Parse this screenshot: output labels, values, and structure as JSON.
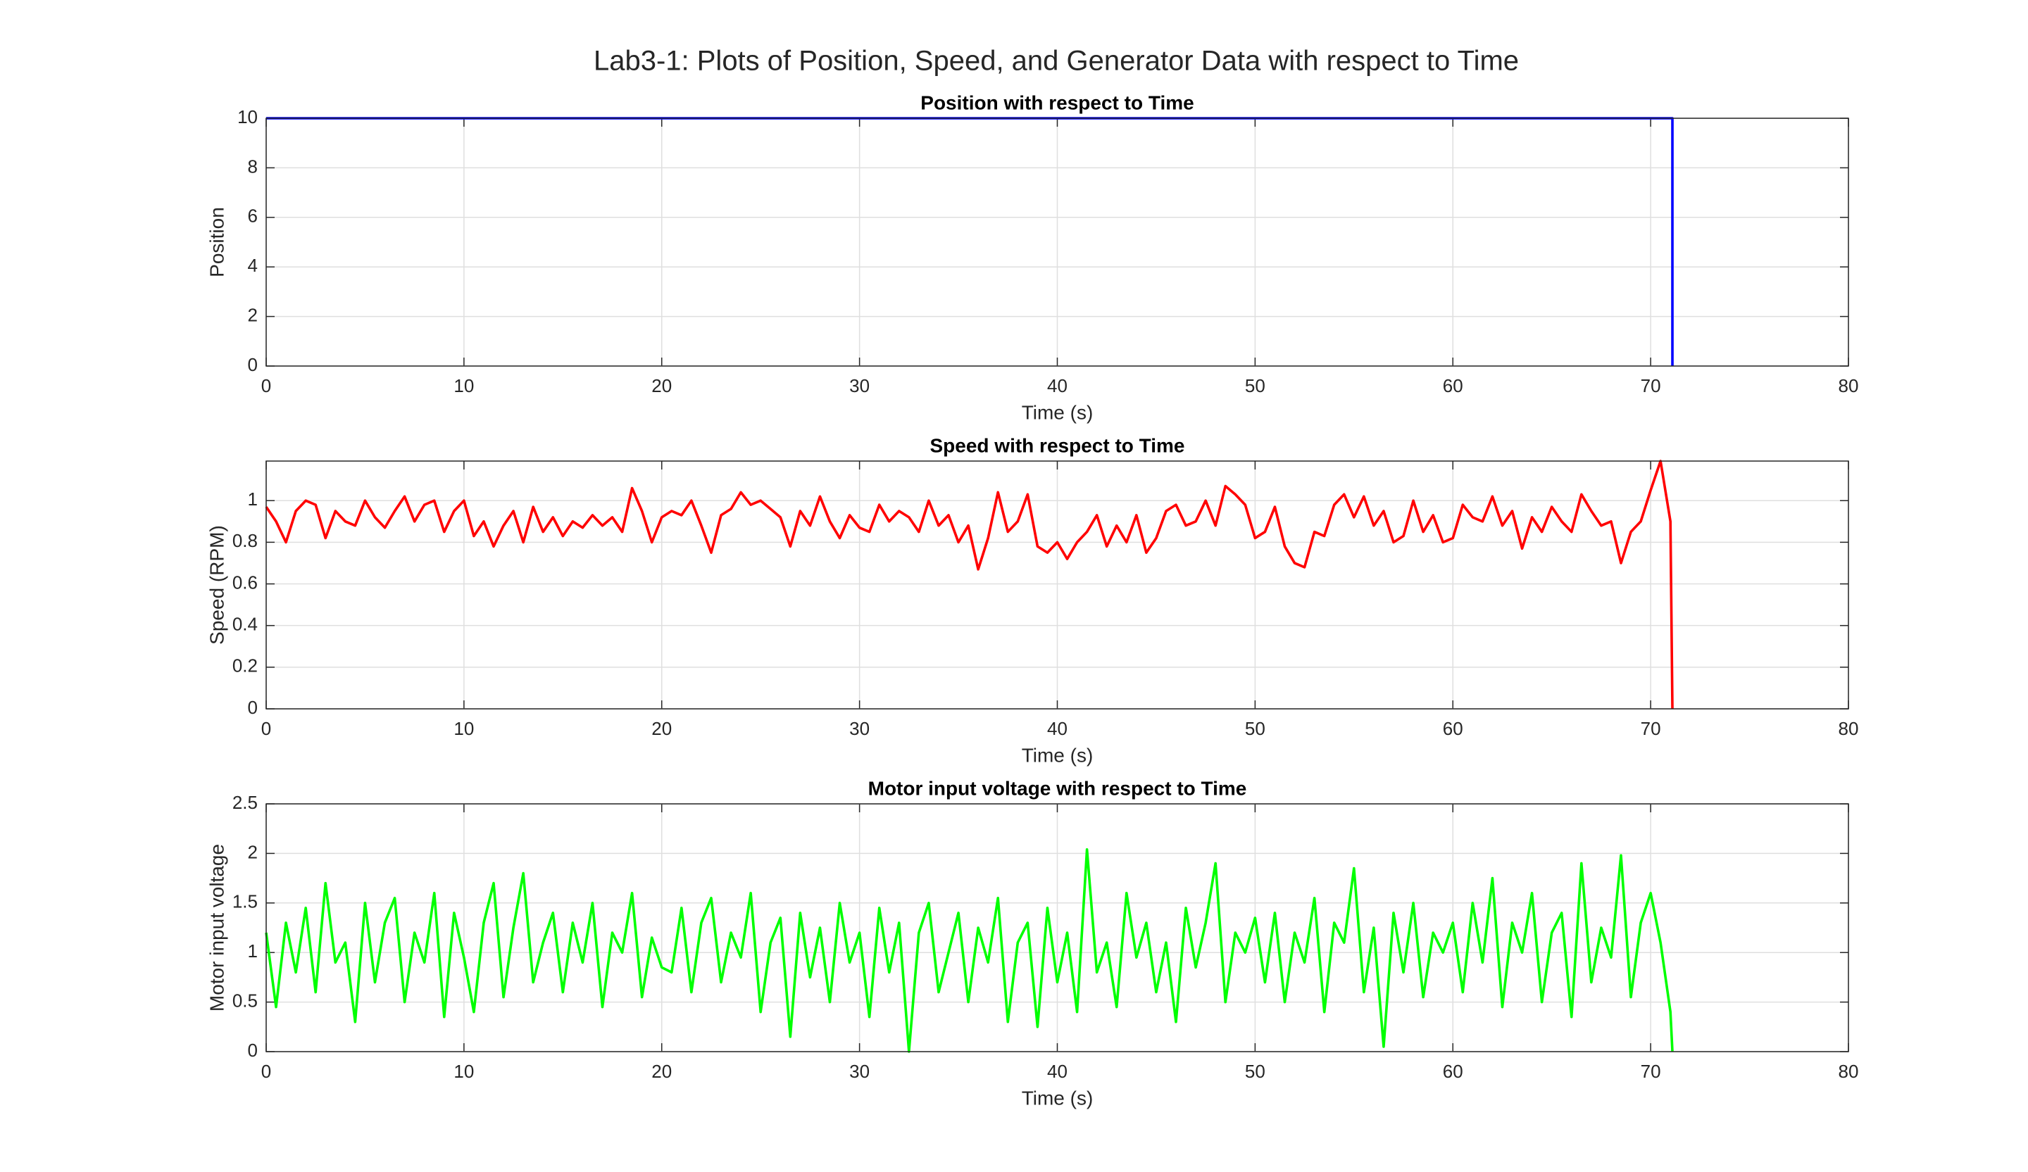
{
  "title": "Lab3-1: Plots of Position, Speed, and Generator Data with respect to Time",
  "chart_data": [
    {
      "type": "line",
      "title": "Position with respect to Time",
      "xlabel": "Time (s)",
      "ylabel": "Position",
      "x": [
        0,
        71.1,
        71.1
      ],
      "series": [
        {
          "color": "#0000ff",
          "values": [
            10,
            10,
            0
          ]
        }
      ],
      "xlim": [
        0,
        80
      ],
      "xticks": [
        0,
        10,
        20,
        30,
        40,
        50,
        60,
        70,
        80
      ],
      "ylim": [
        0,
        10
      ],
      "yticks": [
        0,
        2,
        4,
        6,
        8,
        10
      ],
      "grid": true
    },
    {
      "type": "line",
      "title": "Speed with respect to Time",
      "xlabel": "Time (s)",
      "ylabel": "Speed (RPM)",
      "x": [
        0,
        0.5,
        1,
        1.5,
        2,
        2.5,
        3,
        3.5,
        4,
        4.5,
        5,
        5.5,
        6,
        6.5,
        7,
        7.5,
        8,
        8.5,
        9,
        9.5,
        10,
        10.5,
        11,
        11.5,
        12,
        12.5,
        13,
        13.5,
        14,
        14.5,
        15,
        15.5,
        16,
        16.5,
        17,
        17.5,
        18,
        18.5,
        19,
        19.5,
        20,
        20.5,
        21,
        21.5,
        22,
        22.5,
        23,
        23.5,
        24,
        24.5,
        25,
        25.5,
        26,
        26.5,
        27,
        27.5,
        28,
        28.5,
        29,
        29.5,
        30,
        30.5,
        31,
        31.5,
        32,
        32.5,
        33,
        33.5,
        34,
        34.5,
        35,
        35.5,
        36,
        36.5,
        37,
        37.5,
        38,
        38.5,
        39,
        39.5,
        40,
        40.5,
        41,
        41.5,
        42,
        42.5,
        43,
        43.5,
        44,
        44.5,
        45,
        45.5,
        46,
        46.5,
        47,
        47.5,
        48,
        48.5,
        49,
        49.5,
        50,
        50.5,
        51,
        51.5,
        52,
        52.5,
        53,
        53.5,
        54,
        54.5,
        55,
        55.5,
        56,
        56.5,
        57,
        57.5,
        58,
        58.5,
        59,
        59.5,
        60,
        60.5,
        61,
        61.5,
        62,
        62.5,
        63,
        63.5,
        64,
        64.5,
        65,
        65.5,
        66,
        66.5,
        67,
        67.5,
        68,
        68.5,
        69,
        69.5,
        70,
        70.5,
        71,
        71.1
      ],
      "series": [
        {
          "color": "#ff0000",
          "values": [
            0.97,
            0.9,
            0.8,
            0.95,
            1.0,
            0.98,
            0.82,
            0.95,
            0.9,
            0.88,
            1.0,
            0.92,
            0.87,
            0.95,
            1.02,
            0.9,
            0.98,
            1.0,
            0.85,
            0.95,
            1.0,
            0.83,
            0.9,
            0.78,
            0.88,
            0.95,
            0.8,
            0.97,
            0.85,
            0.92,
            0.83,
            0.9,
            0.87,
            0.93,
            0.88,
            0.92,
            0.85,
            1.06,
            0.95,
            0.8,
            0.92,
            0.95,
            0.93,
            1.0,
            0.88,
            0.75,
            0.93,
            0.96,
            1.04,
            0.98,
            1.0,
            0.96,
            0.92,
            0.78,
            0.95,
            0.88,
            1.02,
            0.9,
            0.82,
            0.93,
            0.87,
            0.85,
            0.98,
            0.9,
            0.95,
            0.92,
            0.85,
            1.0,
            0.88,
            0.93,
            0.8,
            0.88,
            0.67,
            0.82,
            1.04,
            0.85,
            0.9,
            1.03,
            0.78,
            0.75,
            0.8,
            0.72,
            0.8,
            0.85,
            0.93,
            0.78,
            0.88,
            0.8,
            0.93,
            0.75,
            0.82,
            0.95,
            0.98,
            0.88,
            0.9,
            1.0,
            0.88,
            1.07,
            1.03,
            0.98,
            0.82,
            0.85,
            0.97,
            0.78,
            0.7,
            0.68,
            0.85,
            0.83,
            0.98,
            1.03,
            0.92,
            1.02,
            0.88,
            0.95,
            0.8,
            0.83,
            1.0,
            0.85,
            0.93,
            0.8,
            0.82,
            0.98,
            0.92,
            0.9,
            1.02,
            0.88,
            0.95,
            0.77,
            0.92,
            0.85,
            0.97,
            0.9,
            0.85,
            1.03,
            0.95,
            0.88,
            0.9,
            0.7,
            0.85,
            0.9,
            1.05,
            1.19,
            0.9,
            0
          ]
        }
      ],
      "xlim": [
        0,
        80
      ],
      "xticks": [
        0,
        10,
        20,
        30,
        40,
        50,
        60,
        70,
        80
      ],
      "ylim": [
        0,
        1.19
      ],
      "yticks": [
        0,
        0.2,
        0.4,
        0.6,
        0.8,
        1
      ],
      "grid": true
    },
    {
      "type": "line",
      "title": "Motor input voltage with respect to Time",
      "xlabel": "Time (s)",
      "ylabel": "Motor input voltage",
      "x": [
        0,
        0.5,
        1,
        1.5,
        2,
        2.5,
        3,
        3.5,
        4,
        4.5,
        5,
        5.5,
        6,
        6.5,
        7,
        7.5,
        8,
        8.5,
        9,
        9.5,
        10,
        10.5,
        11,
        11.5,
        12,
        12.5,
        13,
        13.5,
        14,
        14.5,
        15,
        15.5,
        16,
        16.5,
        17,
        17.5,
        18,
        18.5,
        19,
        19.5,
        20,
        20.5,
        21,
        21.5,
        22,
        22.5,
        23,
        23.5,
        24,
        24.5,
        25,
        25.5,
        26,
        26.5,
        27,
        27.5,
        28,
        28.5,
        29,
        29.5,
        30,
        30.5,
        31,
        31.5,
        32,
        32.5,
        33,
        33.5,
        34,
        34.5,
        35,
        35.5,
        36,
        36.5,
        37,
        37.5,
        38,
        38.5,
        39,
        39.5,
        40,
        40.5,
        41,
        41.5,
        42,
        42.5,
        43,
        43.5,
        44,
        44.5,
        45,
        45.5,
        46,
        46.5,
        47,
        47.5,
        48,
        48.5,
        49,
        49.5,
        50,
        50.5,
        51,
        51.5,
        52,
        52.5,
        53,
        53.5,
        54,
        54.5,
        55,
        55.5,
        56,
        56.5,
        57,
        57.5,
        58,
        58.5,
        59,
        59.5,
        60,
        60.5,
        61,
        61.5,
        62,
        62.5,
        63,
        63.5,
        64,
        64.5,
        65,
        65.5,
        66,
        66.5,
        67,
        67.5,
        68,
        68.5,
        69,
        69.5,
        70,
        70.5,
        71,
        71.1
      ],
      "series": [
        {
          "color": "#00ff00",
          "values": [
            1.2,
            0.45,
            1.3,
            0.8,
            1.45,
            0.6,
            1.7,
            0.9,
            1.1,
            0.3,
            1.5,
            0.7,
            1.3,
            1.55,
            0.5,
            1.2,
            0.9,
            1.6,
            0.35,
            1.4,
            0.95,
            0.4,
            1.3,
            1.7,
            0.55,
            1.25,
            1.8,
            0.7,
            1.1,
            1.4,
            0.6,
            1.3,
            0.9,
            1.5,
            0.45,
            1.2,
            1.0,
            1.6,
            0.55,
            1.15,
            0.85,
            0.8,
            1.45,
            0.6,
            1.3,
            1.55,
            0.7,
            1.2,
            0.95,
            1.6,
            0.4,
            1.1,
            1.35,
            0.15,
            1.4,
            0.75,
            1.25,
            0.5,
            1.5,
            0.9,
            1.2,
            0.35,
            1.45,
            0.8,
            1.3,
            0.0,
            1.2,
            1.5,
            0.6,
            1.0,
            1.4,
            0.5,
            1.25,
            0.9,
            1.55,
            0.3,
            1.1,
            1.3,
            0.25,
            1.45,
            0.7,
            1.2,
            0.4,
            2.04,
            0.8,
            1.1,
            0.45,
            1.6,
            0.95,
            1.3,
            0.6,
            1.1,
            0.3,
            1.45,
            0.85,
            1.3,
            1.9,
            0.5,
            1.2,
            1.0,
            1.35,
            0.7,
            1.4,
            0.5,
            1.2,
            0.9,
            1.55,
            0.4,
            1.3,
            1.1,
            1.85,
            0.6,
            1.25,
            0.05,
            1.4,
            0.8,
            1.5,
            0.55,
            1.2,
            1.0,
            1.3,
            0.6,
            1.5,
            0.9,
            1.75,
            0.45,
            1.3,
            1.0,
            1.6,
            0.5,
            1.2,
            1.4,
            0.35,
            1.9,
            0.7,
            1.25,
            0.95,
            1.98,
            0.55,
            1.3,
            1.6,
            1.1,
            0.4,
            0
          ]
        }
      ],
      "xlim": [
        0,
        80
      ],
      "xticks": [
        0,
        10,
        20,
        30,
        40,
        50,
        60,
        70,
        80
      ],
      "ylim": [
        0,
        2.5
      ],
      "yticks": [
        0,
        0.5,
        1,
        1.5,
        2,
        2.5
      ],
      "grid": true
    }
  ]
}
